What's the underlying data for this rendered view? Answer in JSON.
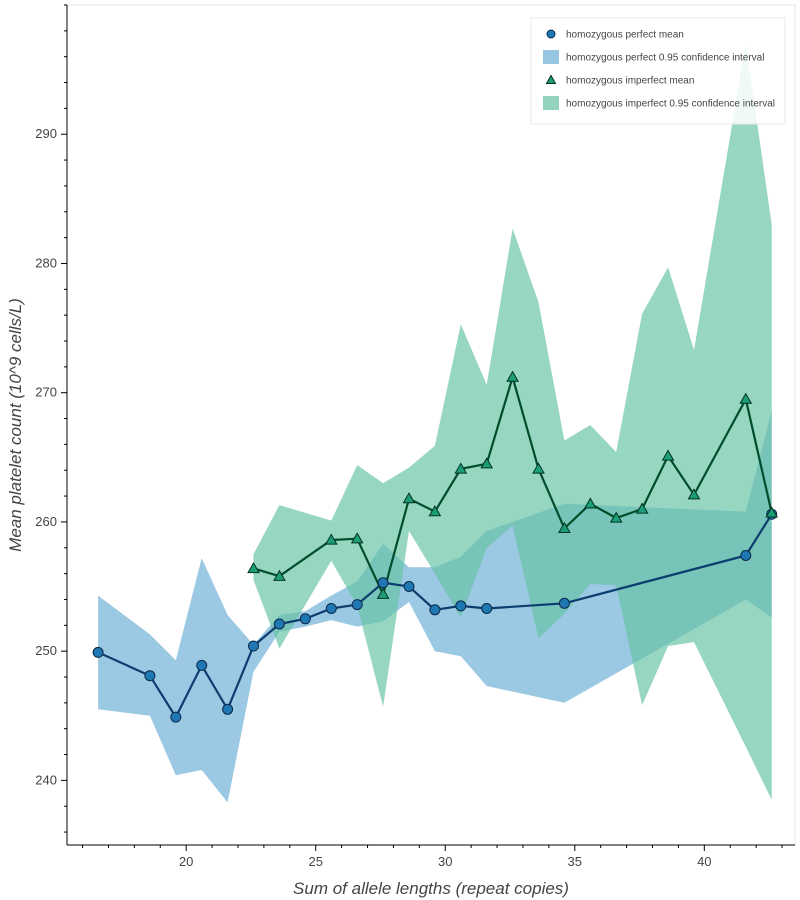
{
  "chart_data": {
    "type": "line",
    "title": "",
    "xlabel": "Sum of allele lengths (repeat copies)",
    "ylabel": "Mean platelet count (10^9 cells/L)",
    "xlim": [
      15.4,
      43.5
    ],
    "ylim": [
      235,
      300
    ],
    "xticks": [
      20,
      25,
      30,
      35,
      40
    ],
    "yticks": [
      240,
      250,
      260,
      270,
      280,
      290
    ],
    "legend_position": "top-right",
    "grid": false,
    "colors": {
      "perfect_line": "#0b3e6e",
      "perfect_marker": "#1f77b4",
      "perfect_band": "#6baed6",
      "imperfect_line": "#004d2b",
      "imperfect_marker": "#1b9e77",
      "imperfect_band": "#66c2a4"
    },
    "legend": [
      {
        "label": "homozygous perfect mean",
        "kind": "circle",
        "color": "#1f77b4"
      },
      {
        "label": "homozygous perfect 0.95 confidence interval",
        "kind": "band",
        "color": "#6baed6"
      },
      {
        "label": "homozygous imperfect mean",
        "kind": "triangle",
        "color": "#1b9e77"
      },
      {
        "label": "homozygous imperfect 0.95 confidence interval",
        "kind": "band",
        "color": "#66c2a4"
      }
    ],
    "series": [
      {
        "name": "homozygous perfect",
        "marker": "circle",
        "x": [
          16.6,
          18.6,
          19.6,
          20.6,
          21.6,
          22.6,
          23.6,
          24.6,
          25.6,
          26.6,
          27.6,
          28.6,
          29.6,
          30.6,
          31.6,
          34.6,
          41.6,
          42.6
        ],
        "y": [
          249.9,
          248.1,
          244.9,
          248.9,
          245.5,
          250.4,
          252.1,
          252.5,
          253.3,
          253.6,
          255.3,
          255.0,
          253.2,
          253.5,
          253.3,
          253.7,
          257.4,
          260.6
        ],
        "lower": [
          245.5,
          245.0,
          240.4,
          240.8,
          238.3,
          248.4,
          251.5,
          251.9,
          252.4,
          251.9,
          252.3,
          253.8,
          250.0,
          249.6,
          247.3,
          246.0,
          254.0,
          252.6
        ],
        "upper": [
          254.3,
          251.3,
          249.3,
          257.2,
          252.8,
          250.5,
          252.8,
          253.1,
          254.3,
          255.4,
          258.3,
          256.5,
          256.5,
          257.3,
          259.3,
          261.4,
          260.8,
          268.6
        ]
      },
      {
        "name": "homozygous imperfect",
        "marker": "triangle",
        "x": [
          22.6,
          23.6,
          25.6,
          26.6,
          27.6,
          28.6,
          29.6,
          30.6,
          31.6,
          32.6,
          33.6,
          34.6,
          35.6,
          36.6,
          37.6,
          38.6,
          39.6,
          41.6,
          42.6
        ],
        "y": [
          256.4,
          255.8,
          258.6,
          258.7,
          254.4,
          261.8,
          260.8,
          264.1,
          264.5,
          271.2,
          264.1,
          259.5,
          261.4,
          260.3,
          261.0,
          265.1,
          262.1,
          269.5,
          260.7
        ],
        "lower": [
          255.5,
          250.2,
          257.0,
          253.5,
          245.7,
          259.3,
          256.0,
          252.6,
          258.0,
          259.7,
          251.0,
          252.9,
          255.2,
          255.1,
          245.8,
          250.4,
          250.7,
          242.6,
          238.5
        ],
        "upper": [
          257.5,
          261.3,
          260.1,
          264.4,
          263.0,
          264.2,
          265.9,
          275.3,
          270.6,
          282.7,
          277.0,
          266.3,
          267.5,
          265.4,
          276.1,
          279.7,
          273.3,
          297.0,
          283.0
        ]
      }
    ]
  }
}
